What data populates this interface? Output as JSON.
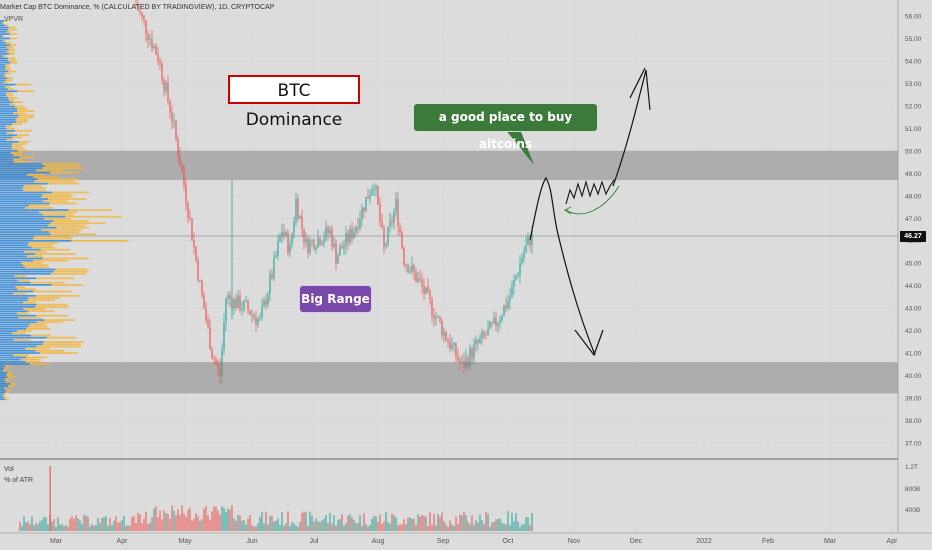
{
  "header": {
    "symbol_line": "Market Cap BTC Dominance, % (CALCULATED BY TRADINGVIEW), 1D, CRYPTOCAP",
    "indicator": "VPVR"
  },
  "annotations": {
    "title": "BTC Dominance",
    "buy_note": "a good place to buy altcoins",
    "range_note": "Big Range"
  },
  "last_price": "46.27",
  "volume_pane": {
    "label": "Vol",
    "sublabel": "% of ATR"
  },
  "colors": {
    "up": "#26a69a",
    "down": "#ef5350",
    "zone": "#9e9e9e",
    "background": "#dcdcdc",
    "vp_blue": "#2f87d8",
    "vp_yellow": "#f2b53a"
  },
  "chart_data": {
    "type": "candlestick",
    "title": "Market Cap BTC Dominance, % (CALCULATED BY TRADINGVIEW), 1D, CRYPTOCAP",
    "xlabel": "",
    "ylabel": "",
    "ylim": [
      36.2,
      56.4
    ],
    "y_ticks": [
      "37.00",
      "38.00",
      "39.00",
      "40.00",
      "41.00",
      "42.00",
      "43.00",
      "44.00",
      "45.00",
      "46.00",
      "47.00",
      "48.00",
      "49.00",
      "50.00",
      "51.00",
      "52.00",
      "53.00",
      "54.00",
      "55.00",
      "56.00"
    ],
    "x_ticks": [
      "Mar",
      "Apr",
      "May",
      "Jun",
      "Jul",
      "Aug",
      "Sep",
      "Oct",
      "Nov",
      "Dec",
      "2022",
      "Feb",
      "Mar",
      "Apr"
    ],
    "zones": [
      {
        "from": 48.7,
        "to": 50.0
      },
      {
        "from": 39.2,
        "to": 40.6
      }
    ],
    "price_path": [
      [
        "Mar 20",
        56.5
      ],
      [
        "Apr 05",
        54.2
      ],
      [
        "Apr 20",
        51.5
      ],
      [
        "May 01",
        48.0
      ],
      [
        "May 10",
        44.0
      ],
      [
        "May 17",
        41.0
      ],
      [
        "May 21",
        40.0
      ],
      [
        "May 24",
        43.5
      ],
      [
        "Jun 01",
        43.0
      ],
      [
        "Jun 05",
        42.4
      ],
      [
        "Jun 10",
        44.5
      ],
      [
        "Jun 15",
        46.5
      ],
      [
        "Jun 20",
        45.6
      ],
      [
        "Jun 25",
        47.8
      ],
      [
        "Jun 30",
        45.8
      ],
      [
        "Jul 10",
        46.4
      ],
      [
        "Jul 15",
        45.3
      ],
      [
        "Jul 25",
        46.5
      ],
      [
        "Jul 29",
        48.7
      ],
      [
        "Aug 05",
        45.6
      ],
      [
        "Aug 10",
        47.6
      ],
      [
        "Aug 15",
        45.2
      ],
      [
        "Aug 25",
        44.1
      ],
      [
        "Sep 05",
        41.9
      ],
      [
        "Sep 12",
        40.4
      ],
      [
        "Sep 18",
        41.3
      ],
      [
        "Sep 25",
        42.2
      ],
      [
        "Oct 01",
        43.5
      ],
      [
        "Oct 05",
        45.3
      ],
      [
        "Oct 08",
        46.27
      ]
    ],
    "volume": {
      "ylabel_ticks": [
        "1.2T",
        "800B",
        "400B"
      ]
    }
  }
}
